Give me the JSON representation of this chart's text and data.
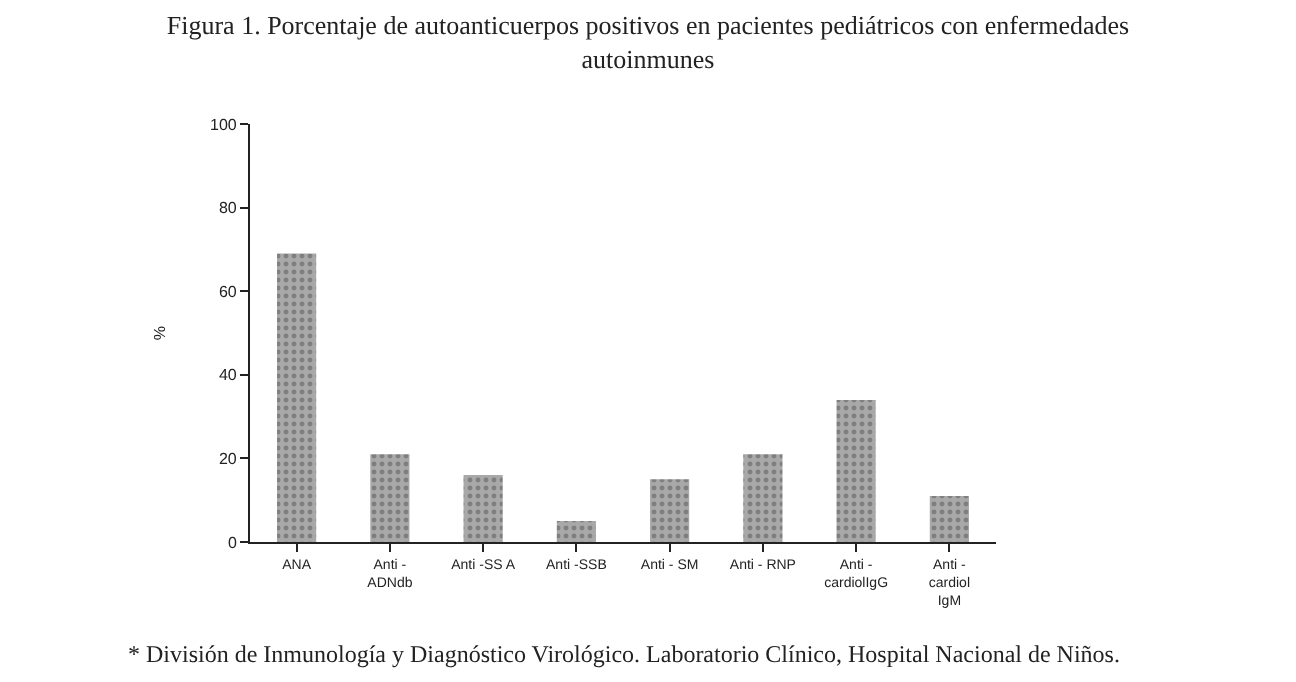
{
  "chart_data": {
    "type": "bar",
    "title": "Figura 1. Porcentaje de autoanticuerpos positivos en pacientes pediátricos con enfermedades\nautoinmunes",
    "ylabel": "%",
    "categories": [
      "ANA",
      "Anti -\nADNdb",
      "Anti -SS A",
      "Anti -SSB",
      "Anti - SM",
      "Anti - RNP",
      "Anti -\ncardiolIgG",
      "Anti -\ncardiol\nIgM"
    ],
    "values": [
      69,
      21,
      16,
      5,
      15,
      21,
      34,
      11
    ],
    "color": "#a8a8a8",
    "ylim": [
      0,
      100
    ],
    "yticks": [
      0,
      20,
      40,
      60,
      80,
      100
    ],
    "legend": false,
    "annotations": [
      "* División de Inmunología y Diagnóstico Virológico. Laboratorio Clínico, Hospital Nacional de Niños."
    ]
  }
}
